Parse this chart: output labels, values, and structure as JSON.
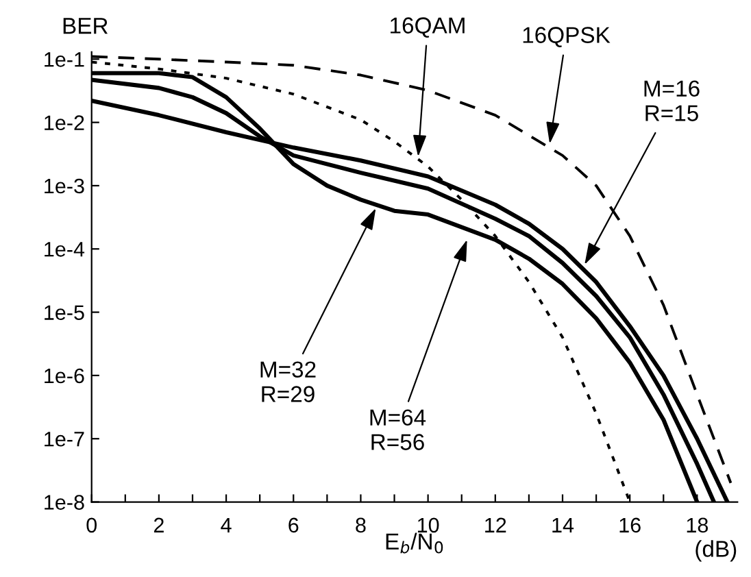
{
  "chart_data": {
    "type": "line",
    "xlabel": "E$_{b}$/N$_{0}$",
    "ylabel": "BER",
    "log": true,
    "xlim": [
      0,
      19.2
    ],
    "ylim": [
      1e-08,
      0.13
    ],
    "xticks": [
      0,
      {
        "value": 1,
        "label": null
      },
      2,
      {
        "value": 3,
        "label": null
      },
      4,
      {
        "value": 5,
        "label": null
      },
      6,
      {
        "value": 7,
        "label": null
      },
      8,
      {
        "value": 9,
        "label": null
      },
      10,
      {
        "value": 11,
        "label": null
      },
      12,
      {
        "value": 13,
        "label": null
      },
      14,
      {
        "value": 15,
        "label": null
      },
      16,
      {
        "value": 17,
        "label": null
      },
      18
    ],
    "yticks": [
      {
        "value": 1e-08,
        "label": "1e-8"
      },
      {
        "value": 1e-07,
        "label": "1e-7"
      },
      {
        "value": 1e-06,
        "label": "1e-6"
      },
      {
        "value": 1e-05,
        "label": "1e-5"
      },
      {
        "value": 0.0001,
        "label": "1e-4"
      },
      {
        "value": 0.001,
        "label": "1e-3"
      },
      {
        "value": 0.01,
        "label": "1e-2"
      },
      {
        "value": 0.1,
        "label": "1e-1"
      }
    ],
    "grid": false,
    "legend": false,
    "marker": "none",
    "series": [
      {
        "color": "#000000",
        "line_style": "solid",
        "x": [
          0,
          2,
          4,
          6,
          8,
          10,
          12,
          13,
          14,
          15,
          16,
          17,
          18,
          18.9
        ],
        "values": [
          0.022,
          0.013,
          0.007,
          0.004,
          0.0025,
          0.0014,
          0.0005,
          0.00025,
          0.0001,
          3e-05,
          6e-06,
          1e-06,
          1e-07,
          1e-08
        ]
      },
      {
        "color": "#000000",
        "line_style": "solid",
        "x": [
          0,
          2,
          3,
          4,
          5,
          6,
          8,
          10,
          12,
          13,
          14,
          15,
          16,
          17,
          18,
          18.5
        ],
        "values": [
          0.047,
          0.035,
          0.025,
          0.014,
          0.006,
          0.003,
          0.0016,
          0.0009,
          0.0003,
          0.00016,
          6e-05,
          1.8e-05,
          4e-06,
          5e-07,
          4e-08,
          1e-08
        ]
      },
      {
        "color": "#000000",
        "line_style": "solid",
        "x": [
          0,
          2,
          3,
          4,
          5,
          6,
          7,
          8,
          9,
          10,
          12,
          13,
          14,
          15,
          16,
          17,
          18
        ],
        "values": [
          0.06,
          0.06,
          0.052,
          0.025,
          0.008,
          0.0022,
          0.001,
          0.0006,
          0.0004,
          0.00035,
          0.00014,
          7e-05,
          2.8e-05,
          8e-06,
          1.6e-06,
          2e-07,
          1e-08
        ]
      },
      {
        "color": "#000000",
        "line_style": "dashed",
        "x": [
          0,
          2,
          4,
          6,
          8,
          10,
          12,
          14,
          15,
          16,
          17,
          18,
          19
        ],
        "values": [
          0.11,
          0.1,
          0.09,
          0.08,
          0.056,
          0.032,
          0.013,
          0.003,
          0.001,
          0.00016,
          1.3e-05,
          5e-07,
          2e-08
        ]
      },
      {
        "color": "#000000",
        "line_style": "dotted",
        "x": [
          0,
          2,
          4,
          6,
          8,
          9,
          10,
          11,
          12,
          13,
          14,
          15,
          16
        ],
        "values": [
          0.09,
          0.07,
          0.05,
          0.028,
          0.011,
          0.005,
          0.002,
          0.0006,
          0.00016,
          3e-05,
          4e-06,
          2.5e-07,
          1e-08
        ]
      }
    ],
    "annotations": [
      {
        "text": "16QAM",
        "x": 9.7,
        "y": 0.0025
      },
      {
        "text": "16QPSK",
        "x": 13.6,
        "y": 0.004
      },
      {
        "text": "M=16\nR=15",
        "x": 14.6,
        "y": 5e-05
      },
      {
        "text": "M=32\nR=29",
        "x": 8.5,
        "y": 0.0005
      },
      {
        "text": "M=64\nR=56",
        "x": 11.2,
        "y": 0.00016
      },
      "(dB)"
    ]
  }
}
